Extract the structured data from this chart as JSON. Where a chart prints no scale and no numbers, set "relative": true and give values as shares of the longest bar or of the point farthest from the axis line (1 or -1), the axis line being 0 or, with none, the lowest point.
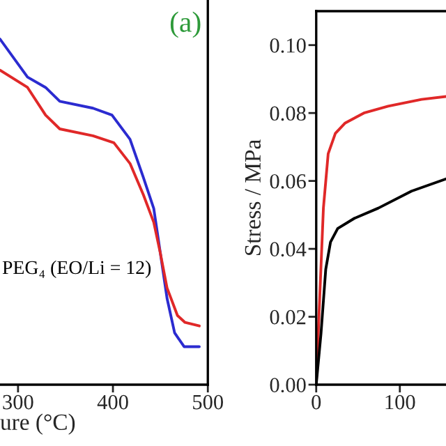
{
  "chart_data": [
    {
      "type": "line",
      "relative": true,
      "xlabel": "ure (°C)",
      "xlim": [
        281,
        500
      ],
      "xticks": [
        300,
        400,
        500
      ],
      "tick_labels": "x",
      "legend": false,
      "grid": false,
      "annotations": [
        "(a)",
        "PEG₄ (EO/Li = 12)"
      ],
      "series": [
        {
          "color": "#2b2bd0",
          "x": [
            281,
            310,
            329,
            344,
            379,
            399,
            418,
            432,
            443,
            450,
            457,
            465,
            475,
            491
          ],
          "values": [
            1.0,
            0.89,
            0.86,
            0.82,
            0.8,
            0.78,
            0.71,
            0.6,
            0.51,
            0.38,
            0.25,
            0.15,
            0.11,
            0.11
          ]
        },
        {
          "color": "#e02828",
          "x": [
            281,
            310,
            329,
            344,
            379,
            401,
            418,
            432,
            443,
            450,
            457,
            468,
            476,
            491
          ],
          "values": [
            0.91,
            0.86,
            0.78,
            0.74,
            0.72,
            0.7,
            0.64,
            0.55,
            0.47,
            0.38,
            0.28,
            0.2,
            0.18,
            0.17
          ]
        }
      ]
    },
    {
      "type": "line",
      "ylabel": "Stress / MPa",
      "xlim": [
        0,
        160
      ],
      "xticks": [
        0,
        100
      ],
      "ylim": [
        0,
        0.11
      ],
      "yticks": [
        {
          "value": 0,
          "label": "0.00"
        },
        {
          "value": 0.02,
          "label": "0.02"
        },
        {
          "value": 0.04,
          "label": "0.04"
        },
        {
          "value": 0.06,
          "label": "0.06"
        },
        {
          "value": 0.08,
          "label": "0.08"
        },
        {
          "value": 0.1,
          "label": "0.10"
        }
      ],
      "legend": false,
      "grid": false,
      "series": [
        {
          "color": "#e02828",
          "x": [
            0,
            2.9,
            8.6,
            14.3,
            22.9,
            34.3,
            57,
            86,
            126,
            160
          ],
          "values": [
            0,
            0.018,
            0.052,
            0.068,
            0.074,
            0.077,
            0.08,
            0.082,
            0.084,
            0.085
          ]
        },
        {
          "color": "#000000",
          "x": [
            0,
            5.7,
            11.4,
            17.1,
            25.7,
            45.7,
            74.3,
            114,
            160
          ],
          "values": [
            0,
            0.015,
            0.034,
            0.042,
            0.046,
            0.049,
            0.052,
            0.057,
            0.061
          ]
        }
      ]
    }
  ]
}
